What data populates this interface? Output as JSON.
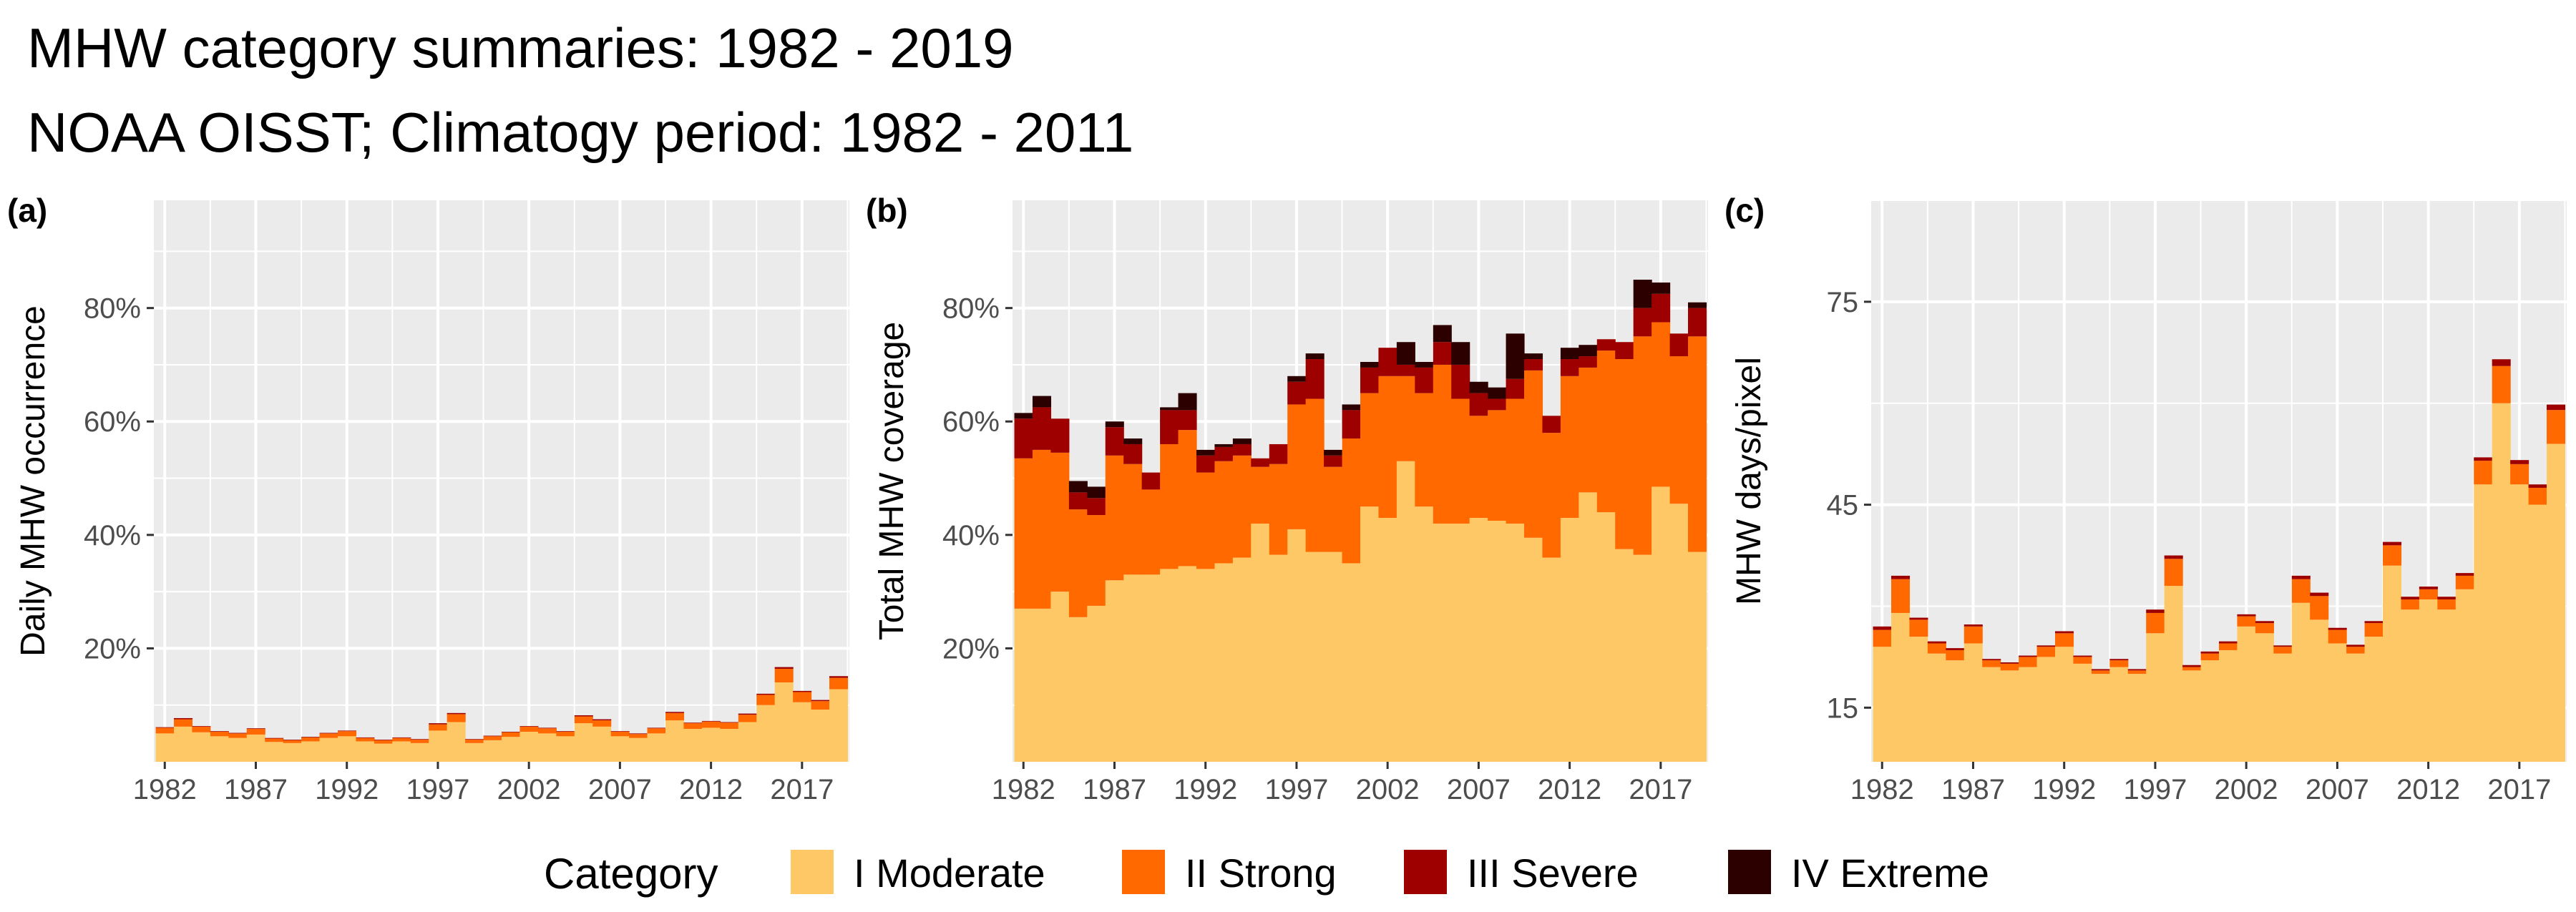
{
  "title": "MHW category summaries: 1982 - 2019",
  "subtitle": "NOAA OISST; Climatogy period: 1982 - 2011",
  "colors": {
    "panel_bg": "#ebebeb",
    "grid": "#ffffff",
    "categories": [
      "#ffc866",
      "#ff6900",
      "#9e0000",
      "#2d0000"
    ]
  },
  "legend": {
    "title": "Category",
    "items": [
      "I Moderate",
      "II Strong",
      "III Severe",
      "IV Extreme"
    ]
  },
  "chart_data": [
    {
      "type": "bar",
      "stacked": true,
      "panel_label": "(a)",
      "ylabel": "Daily MHW occurrence",
      "x": [
        1982,
        1983,
        1984,
        1985,
        1986,
        1987,
        1988,
        1989,
        1990,
        1991,
        1992,
        1993,
        1994,
        1995,
        1996,
        1997,
        1998,
        1999,
        2000,
        2001,
        2002,
        2003,
        2004,
        2005,
        2006,
        2007,
        2008,
        2009,
        2010,
        2011,
        2012,
        2013,
        2014,
        2015,
        2016,
        2017,
        2018,
        2019
      ],
      "x_ticks": [
        1982,
        1987,
        1992,
        1997,
        2002,
        2007,
        2012,
        2017
      ],
      "xlim": [
        1981.4,
        2019.6
      ],
      "ylim": [
        0,
        0.99
      ],
      "y_ticks": [
        0.2,
        0.4,
        0.6,
        0.8
      ],
      "y_tick_labels": [
        "20%",
        "40%",
        "60%",
        "80%"
      ],
      "series": [
        {
          "name": "I Moderate",
          "values": [
            0.05,
            0.062,
            0.052,
            0.045,
            0.042,
            0.048,
            0.035,
            0.033,
            0.036,
            0.042,
            0.045,
            0.036,
            0.032,
            0.036,
            0.033,
            0.055,
            0.07,
            0.033,
            0.038,
            0.044,
            0.053,
            0.05,
            0.045,
            0.068,
            0.062,
            0.045,
            0.042,
            0.05,
            0.073,
            0.058,
            0.06,
            0.058,
            0.07,
            0.1,
            0.14,
            0.105,
            0.092,
            0.128
          ]
        },
        {
          "name": "II Strong",
          "values": [
            0.01,
            0.013,
            0.01,
            0.008,
            0.008,
            0.01,
            0.006,
            0.005,
            0.007,
            0.008,
            0.009,
            0.006,
            0.006,
            0.006,
            0.006,
            0.011,
            0.014,
            0.006,
            0.007,
            0.008,
            0.009,
            0.009,
            0.008,
            0.012,
            0.011,
            0.008,
            0.007,
            0.009,
            0.013,
            0.01,
            0.011,
            0.011,
            0.013,
            0.018,
            0.024,
            0.018,
            0.015,
            0.02
          ]
        },
        {
          "name": "III Severe",
          "values": [
            0.001,
            0.002,
            0.001,
            0.001,
            0.001,
            0.001,
            0.001,
            0.001,
            0.001,
            0.001,
            0.001,
            0.001,
            0.001,
            0.001,
            0.001,
            0.002,
            0.002,
            0.001,
            0.001,
            0.001,
            0.001,
            0.001,
            0.001,
            0.002,
            0.002,
            0.001,
            0.001,
            0.001,
            0.002,
            0.001,
            0.001,
            0.001,
            0.002,
            0.002,
            0.003,
            0.002,
            0.002,
            0.003
          ]
        },
        {
          "name": "IV Extreme",
          "values": [
            0.0,
            0.0,
            0.0,
            0.0,
            0.0,
            0.0,
            0.0,
            0.0,
            0.0,
            0.0,
            0.0,
            0.0,
            0.0,
            0.0,
            0.0,
            0.0,
            0.0,
            0.0,
            0.0,
            0.0,
            0.0,
            0.0,
            0.0,
            0.0,
            0.0,
            0.0,
            0.0,
            0.0,
            0.0,
            0.0,
            0.0,
            0.0,
            0.0,
            0.0,
            0.0,
            0.0,
            0.0,
            0.0
          ]
        }
      ]
    },
    {
      "type": "bar",
      "stacked": true,
      "panel_label": "(b)",
      "ylabel": "Total MHW coverage",
      "x": [
        1982,
        1983,
        1984,
        1985,
        1986,
        1987,
        1988,
        1989,
        1990,
        1991,
        1992,
        1993,
        1994,
        1995,
        1996,
        1997,
        1998,
        1999,
        2000,
        2001,
        2002,
        2003,
        2004,
        2005,
        2006,
        2007,
        2008,
        2009,
        2010,
        2011,
        2012,
        2013,
        2014,
        2015,
        2016,
        2017,
        2018,
        2019
      ],
      "x_ticks": [
        1982,
        1987,
        1992,
        1997,
        2002,
        2007,
        2012,
        2017
      ],
      "xlim": [
        1981.4,
        2019.6
      ],
      "ylim": [
        0,
        0.99
      ],
      "y_ticks": [
        0.2,
        0.4,
        0.6,
        0.8
      ],
      "y_tick_labels": [
        "20%",
        "40%",
        "60%",
        "80%"
      ],
      "series": [
        {
          "name": "I Moderate",
          "values": [
            0.27,
            0.27,
            0.3,
            0.255,
            0.275,
            0.32,
            0.33,
            0.33,
            0.34,
            0.345,
            0.34,
            0.35,
            0.36,
            0.42,
            0.365,
            0.41,
            0.37,
            0.37,
            0.35,
            0.45,
            0.43,
            0.53,
            0.45,
            0.42,
            0.42,
            0.43,
            0.425,
            0.42,
            0.395,
            0.36,
            0.43,
            0.475,
            0.44,
            0.375,
            0.365,
            0.485,
            0.455,
            0.37
          ]
        },
        {
          "name": "II Strong",
          "values": [
            0.265,
            0.28,
            0.245,
            0.19,
            0.16,
            0.22,
            0.195,
            0.15,
            0.22,
            0.24,
            0.17,
            0.18,
            0.18,
            0.1,
            0.16,
            0.22,
            0.27,
            0.15,
            0.22,
            0.2,
            0.25,
            0.15,
            0.2,
            0.28,
            0.22,
            0.18,
            0.195,
            0.22,
            0.295,
            0.22,
            0.25,
            0.22,
            0.285,
            0.335,
            0.385,
            0.29,
            0.26,
            0.38
          ]
        },
        {
          "name": "III Severe",
          "values": [
            0.07,
            0.075,
            0.06,
            0.03,
            0.03,
            0.05,
            0.035,
            0.03,
            0.06,
            0.035,
            0.03,
            0.025,
            0.02,
            0.015,
            0.035,
            0.04,
            0.07,
            0.02,
            0.05,
            0.045,
            0.05,
            0.02,
            0.045,
            0.04,
            0.06,
            0.04,
            0.02,
            0.035,
            0.02,
            0.03,
            0.03,
            0.02,
            0.02,
            0.03,
            0.05,
            0.05,
            0.04,
            0.05
          ]
        },
        {
          "name": "IV Extreme",
          "values": [
            0.01,
            0.02,
            0.0,
            0.02,
            0.02,
            0.01,
            0.01,
            0.0,
            0.005,
            0.03,
            0.01,
            0.005,
            0.01,
            0.0,
            0.0,
            0.01,
            0.01,
            0.01,
            0.01,
            0.01,
            0.0,
            0.04,
            0.01,
            0.03,
            0.04,
            0.02,
            0.02,
            0.08,
            0.01,
            0.0,
            0.02,
            0.02,
            0.0,
            0.0,
            0.05,
            0.02,
            0.0,
            0.01
          ]
        }
      ]
    },
    {
      "type": "bar",
      "stacked": true,
      "panel_label": "(c)",
      "ylabel": "MHW days/pixel",
      "x": [
        1982,
        1983,
        1984,
        1985,
        1986,
        1987,
        1988,
        1989,
        1990,
        1991,
        1992,
        1993,
        1994,
        1995,
        1996,
        1997,
        1998,
        1999,
        2000,
        2001,
        2002,
        2003,
        2004,
        2005,
        2006,
        2007,
        2008,
        2009,
        2010,
        2011,
        2012,
        2013,
        2014,
        2015,
        2016,
        2017,
        2018,
        2019
      ],
      "x_ticks": [
        1982,
        1987,
        1992,
        1997,
        2002,
        2007,
        2012,
        2017
      ],
      "xlim": [
        1981.4,
        2019.6
      ],
      "ylim": [
        7,
        90
      ],
      "y_ticks": [
        15,
        45,
        75
      ],
      "y_tick_labels": [
        "15",
        "45",
        "75"
      ],
      "series": [
        {
          "name": "I Moderate",
          "values": [
            17,
            22,
            18.5,
            16,
            15,
            17.5,
            14,
            13.5,
            14,
            15.5,
            17,
            14.5,
            13,
            14,
            13,
            19,
            26,
            13.5,
            15,
            16.5,
            20,
            19,
            16,
            23.5,
            21,
            17.5,
            16,
            18.5,
            29,
            22.5,
            24,
            22.5,
            25.5,
            41,
            53,
            41,
            38,
            47
          ]
        },
        {
          "name": "II Strong",
          "values": [
            2.5,
            5,
            2.5,
            1.5,
            1.5,
            2.5,
            1,
            1,
            1.5,
            1.5,
            2,
            1,
            0.5,
            1,
            0.5,
            3,
            4,
            0.5,
            1,
            1,
            1.5,
            1.5,
            1,
            3.5,
            3.5,
            2,
            1,
            2,
            3,
            1.5,
            1.5,
            1.5,
            2,
            3.5,
            5.5,
            3,
            2.5,
            5
          ]
        },
        {
          "name": "III Severe",
          "values": [
            0.5,
            0.5,
            0.3,
            0.3,
            0.3,
            0.3,
            0.2,
            0.2,
            0.2,
            0.2,
            0.3,
            0.2,
            0.2,
            0.2,
            0.2,
            0.5,
            0.5,
            0.3,
            0.3,
            0.3,
            0.3,
            0.3,
            0.2,
            0.5,
            0.5,
            0.3,
            0.3,
            0.3,
            0.5,
            0.4,
            0.4,
            0.4,
            0.4,
            0.5,
            1,
            0.6,
            0.5,
            0.8
          ]
        },
        {
          "name": "IV Extreme",
          "values": [
            0,
            0,
            0,
            0,
            0,
            0,
            0,
            0,
            0,
            0,
            0,
            0,
            0,
            0,
            0,
            0,
            0,
            0,
            0,
            0,
            0,
            0,
            0,
            0,
            0,
            0,
            0,
            0,
            0,
            0,
            0,
            0,
            0,
            0,
            0,
            0,
            0,
            0
          ]
        }
      ]
    }
  ]
}
